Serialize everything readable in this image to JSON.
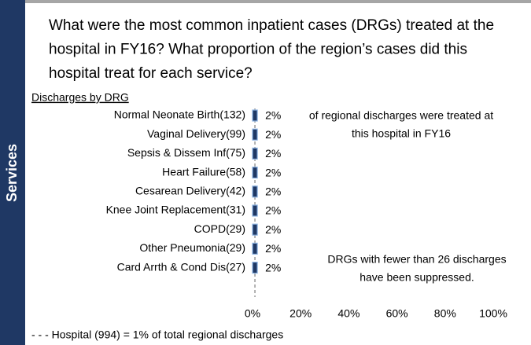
{
  "sidebar": "Services",
  "chart_data": {
    "type": "bar",
    "orientation": "horizontal",
    "title": [
      "What were the most common inpatient cases (DRGs) treated at the",
      "hospital in FY16? What proportion of the region’s cases did this",
      "hospital treat for each service?"
    ],
    "subtitle": "Discharges by DRG",
    "categories": [
      "Normal Neonate Birth(132)",
      "Vaginal Delivery(99)",
      "Sepsis & Dissem Inf(75)",
      "Heart Failure(58)",
      "Cesarean Delivery(42)",
      "Knee Joint Replacement(31)",
      "COPD(29)",
      "Other Pneumonia(29)",
      "Card Arrth & Cond Dis(27)"
    ],
    "values": [
      2,
      2,
      2,
      2,
      2,
      2,
      2,
      2,
      2
    ],
    "value_labels": [
      "2%",
      "2%",
      "2%",
      "2%",
      "2%",
      "2%",
      "2%",
      "2%",
      "2%"
    ],
    "color": "#1f3864",
    "xlim": [
      0,
      100
    ],
    "xticks": [
      {
        "value": 0,
        "label": "0%"
      },
      {
        "value": 20,
        "label": "20%"
      },
      {
        "value": 40,
        "label": "40%"
      },
      {
        "value": 60,
        "label": "60%"
      },
      {
        "value": 80,
        "label": "80%"
      },
      {
        "value": 100,
        "label": "100%"
      }
    ],
    "reference_line": 1,
    "annotations": [
      [
        "of regional discharges were treated at",
        "this hospital in FY16"
      ],
      [
        "DRGs with fewer than 26 discharges",
        "have been suppressed."
      ]
    ],
    "footnote": "- - -  Hospital  (994) = 1%  of total regional  discharges"
  }
}
